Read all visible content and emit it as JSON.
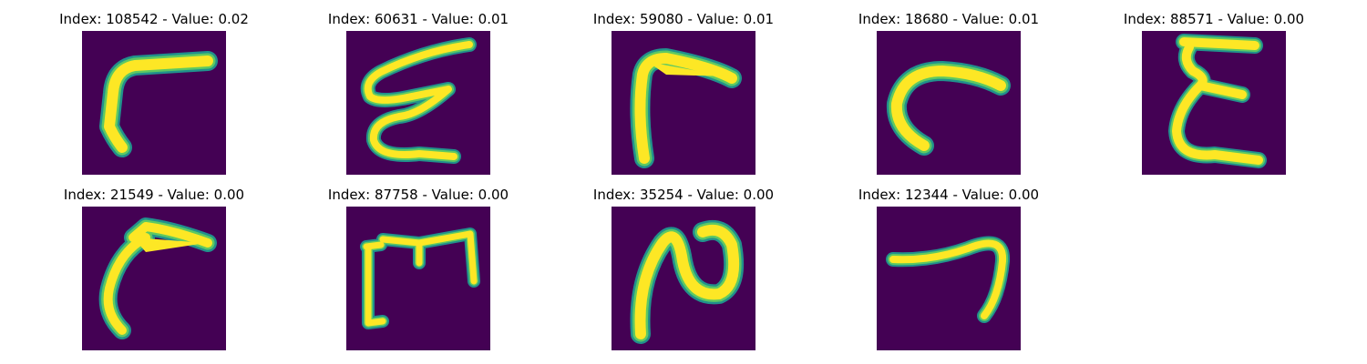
{
  "colors": {
    "background": "#440154",
    "stroke_inner": "#fde725",
    "stroke_edge": "#21918c",
    "stroke_mid": "#5ec962"
  },
  "panels": [
    {
      "title": "Index: 108542 - Value: 0.02",
      "glyph": "stroke-glyph-a"
    },
    {
      "title": "Index: 60631 - Value: 0.01",
      "glyph": "stroke-glyph-b"
    },
    {
      "title": "Index: 59080 - Value: 0.01",
      "glyph": "stroke-glyph-c"
    },
    {
      "title": "Index: 18680 - Value: 0.01",
      "glyph": "stroke-glyph-d"
    },
    {
      "title": "Index: 88571 - Value: 0.00",
      "glyph": "stroke-glyph-e"
    },
    {
      "title": "Index: 21549 - Value: 0.00",
      "glyph": "stroke-glyph-f"
    },
    {
      "title": "Index: 87758 - Value: 0.00",
      "glyph": "stroke-glyph-g"
    },
    {
      "title": "Index: 35254 - Value: 0.00",
      "glyph": "stroke-glyph-h"
    },
    {
      "title": "Index: 12344 - Value: 0.00",
      "glyph": "stroke-glyph-i"
    }
  ]
}
